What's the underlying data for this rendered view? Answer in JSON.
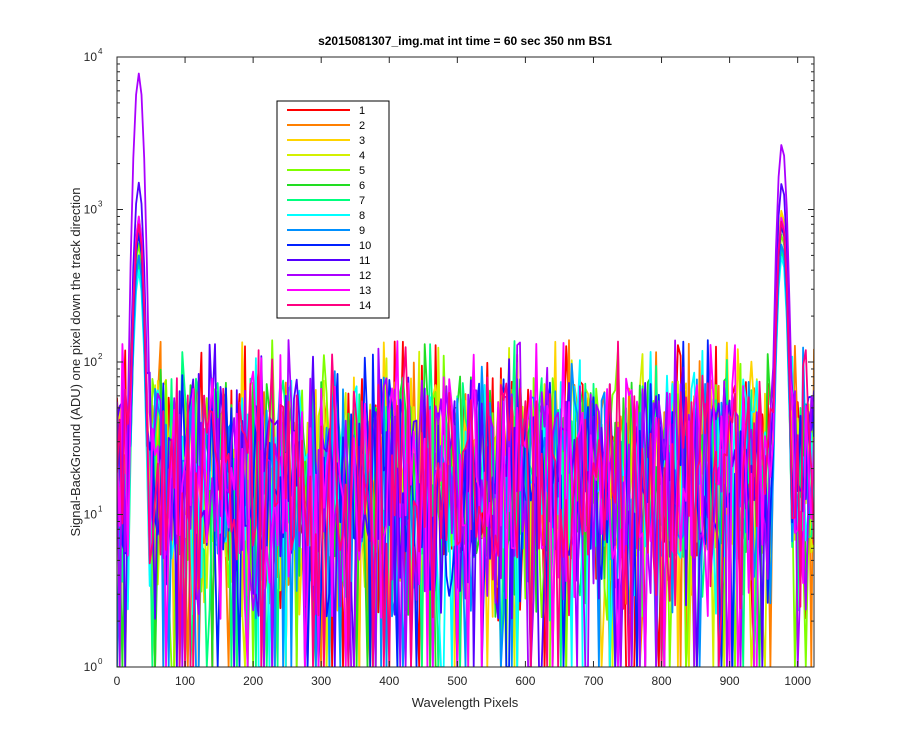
{
  "chart_data": {
    "type": "line",
    "title": "s2015081307_img.mat int time = 60 sec  350 nm BS1",
    "xlabel": "Wavelength Pixels",
    "ylabel": "Signal-BackGround (ADU) one pixel down the track direction",
    "xlim": [
      0,
      1024
    ],
    "ylim": [
      1,
      10000
    ],
    "yscale": "log",
    "x_ticks": [
      0,
      100,
      200,
      300,
      400,
      500,
      600,
      700,
      800,
      900,
      1000
    ],
    "y_ticks": [
      {
        "base": "10",
        "exp": "0",
        "value": 1
      },
      {
        "base": "10",
        "exp": "1",
        "value": 10
      },
      {
        "base": "10",
        "exp": "2",
        "value": 100
      },
      {
        "base": "10",
        "exp": "3",
        "value": 1000
      },
      {
        "base": "10",
        "exp": "4",
        "value": 10000
      }
    ],
    "grid": false,
    "legend_position": "top-left",
    "noise_floor": {
      "typical_range": [
        5,
        80
      ],
      "occasional_max": 140
    },
    "peaks": [
      {
        "x": 32,
        "max": 7800,
        "note": "series 12 highest; other series ~1000"
      },
      {
        "x": 977,
        "max": 2700,
        "note": "series 12 highest; series 3 ~1000"
      }
    ],
    "series": [
      {
        "name": "1",
        "color": "#ff0000",
        "peak_values": [
          800,
          900
        ]
      },
      {
        "name": "2",
        "color": "#ff7f00",
        "peak_values": [
          850,
          950
        ]
      },
      {
        "name": "3",
        "color": "#ffd400",
        "peak_values": [
          900,
          1000
        ]
      },
      {
        "name": "4",
        "color": "#d4f000",
        "peak_values": [
          700,
          800
        ]
      },
      {
        "name": "5",
        "color": "#7fff00",
        "peak_values": [
          600,
          700
        ]
      },
      {
        "name": "6",
        "color": "#22dd22",
        "peak_values": [
          500,
          600
        ]
      },
      {
        "name": "7",
        "color": "#00ff7f",
        "peak_values": [
          450,
          550
        ]
      },
      {
        "name": "8",
        "color": "#00ffff",
        "peak_values": [
          400,
          500
        ]
      },
      {
        "name": "9",
        "color": "#0090ff",
        "peak_values": [
          500,
          600
        ]
      },
      {
        "name": "10",
        "color": "#0022ff",
        "peak_values": [
          700,
          800
        ]
      },
      {
        "name": "11",
        "color": "#5500ff",
        "peak_values": [
          1500,
          1500
        ]
      },
      {
        "name": "12",
        "color": "#aa00ff",
        "peak_values": [
          7800,
          2700
        ]
      },
      {
        "name": "13",
        "color": "#ff00ff",
        "peak_values": [
          900,
          900
        ]
      },
      {
        "name": "14",
        "color": "#ff0080",
        "peak_values": [
          800,
          850
        ]
      }
    ]
  }
}
